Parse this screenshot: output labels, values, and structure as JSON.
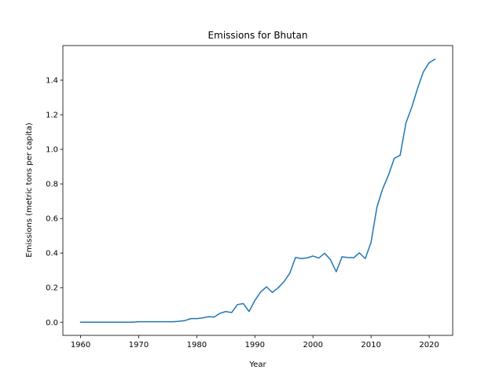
{
  "chart_data": {
    "type": "line",
    "title": "Emissions for Bhutan",
    "xlabel": "Year",
    "ylabel": "Emissions (metric tons per capita)",
    "xlim": [
      1956.95,
      2024.05
    ],
    "ylim": [
      -0.076,
      1.6
    ],
    "xticks": [
      1960,
      1970,
      1980,
      1990,
      2000,
      2010,
      2020
    ],
    "yticks": [
      0.0,
      0.2,
      0.4,
      0.6,
      0.8,
      1.0,
      1.2,
      1.4
    ],
    "xtick_labels": [
      "1960",
      "1970",
      "1980",
      "1990",
      "2000",
      "2010",
      "2020"
    ],
    "ytick_labels": [
      "0.0",
      "0.2",
      "0.4",
      "0.6",
      "0.8",
      "1.0",
      "1.2",
      "1.4"
    ],
    "grid": false,
    "line_color": "#1f77b4",
    "series": [
      {
        "x": [
          1960,
          1961,
          1962,
          1963,
          1964,
          1965,
          1966,
          1967,
          1968,
          1969,
          1970,
          1971,
          1972,
          1973,
          1974,
          1975,
          1976,
          1977,
          1978,
          1979,
          1980,
          1981,
          1982,
          1983,
          1984,
          1985,
          1986,
          1987,
          1988,
          1989,
          1990,
          1991,
          1992,
          1993,
          1994,
          1995,
          1996,
          1997,
          1998,
          1999,
          2000,
          2001,
          2002,
          2003,
          2004,
          2005,
          2006,
          2007,
          2008,
          2009,
          2010,
          2011,
          2012,
          2013,
          2014,
          2015,
          2016,
          2017,
          2018,
          2019,
          2020,
          2021
        ],
        "values": [
          0.0,
          0.0,
          0.0,
          0.0,
          0.0,
          0.0,
          0.0,
          0.0,
          0.0,
          0.0,
          0.003,
          0.003,
          0.003,
          0.003,
          0.003,
          0.003,
          0.003,
          0.006,
          0.01,
          0.021,
          0.021,
          0.025,
          0.032,
          0.03,
          0.052,
          0.062,
          0.056,
          0.102,
          0.108,
          0.062,
          0.126,
          0.175,
          0.205,
          0.172,
          0.199,
          0.234,
          0.283,
          0.375,
          0.368,
          0.372,
          0.383,
          0.371,
          0.399,
          0.362,
          0.292,
          0.378,
          0.374,
          0.373,
          0.401,
          0.368,
          0.462,
          0.665,
          0.772,
          0.851,
          0.948,
          0.965,
          1.152,
          1.243,
          1.352,
          1.448,
          1.501,
          1.521
        ]
      }
    ]
  }
}
